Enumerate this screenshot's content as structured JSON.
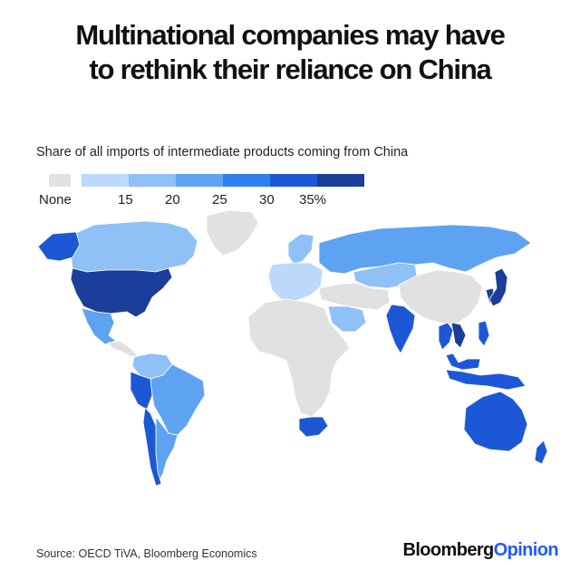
{
  "title_lines": [
    "Multinational companies may have",
    "to rethink their reliance on China"
  ],
  "subtitle": "Share of all imports of intermediate products coming from China",
  "legend": {
    "none_label": "None",
    "none_color": "#e1e1e1",
    "colors": [
      "#bcd9fb",
      "#8fc0f6",
      "#5ea3f1",
      "#2f7ff0",
      "#1c58d6",
      "#1a3e9a"
    ],
    "tick_labels": [
      "15",
      "20",
      "25",
      "30",
      "35%"
    ]
  },
  "colors": {
    "none": "#e1e1e1",
    "brand_blue": "#1f5bff"
  },
  "source": "Source: OECD TiVA, Bloomberg Economics",
  "brand": {
    "part1": "Bloomberg",
    "part2": "Opinion"
  },
  "countries": [
    {
      "name": "Alaska",
      "share": 30
    },
    {
      "name": "Canada",
      "share": 15
    },
    {
      "name": "United States",
      "share": 35
    },
    {
      "name": "Mexico",
      "share": 20
    },
    {
      "name": "Greenland",
      "share": null
    },
    {
      "name": "Central America",
      "share": null
    },
    {
      "name": "Colombia",
      "share": 15
    },
    {
      "name": "Peru",
      "share": 30
    },
    {
      "name": "Brazil",
      "share": 20
    },
    {
      "name": "Argentina",
      "share": 20
    },
    {
      "name": "Chile",
      "share": 30
    },
    {
      "name": "Norway",
      "share": 15
    },
    {
      "name": "Western Europe",
      "share": 10
    },
    {
      "name": "Russia",
      "share": 20
    },
    {
      "name": "Kazakhstan",
      "share": 15
    },
    {
      "name": "Middle East",
      "share": null
    },
    {
      "name": "Saudi Arabia",
      "share": 15
    },
    {
      "name": "Africa",
      "share": null
    },
    {
      "name": "South Africa",
      "share": 30
    },
    {
      "name": "India",
      "share": 30
    },
    {
      "name": "China",
      "share": null
    },
    {
      "name": "Japan",
      "share": 35
    },
    {
      "name": "South Korea",
      "share": 35
    },
    {
      "name": "Vietnam",
      "share": 35
    },
    {
      "name": "Thailand",
      "share": 30
    },
    {
      "name": "Malaysia",
      "share": 30
    },
    {
      "name": "Indonesia",
      "share": 30
    },
    {
      "name": "Philippines",
      "share": 30
    },
    {
      "name": "Australia",
      "share": 30
    },
    {
      "name": "New Zealand",
      "share": 30
    }
  ]
}
